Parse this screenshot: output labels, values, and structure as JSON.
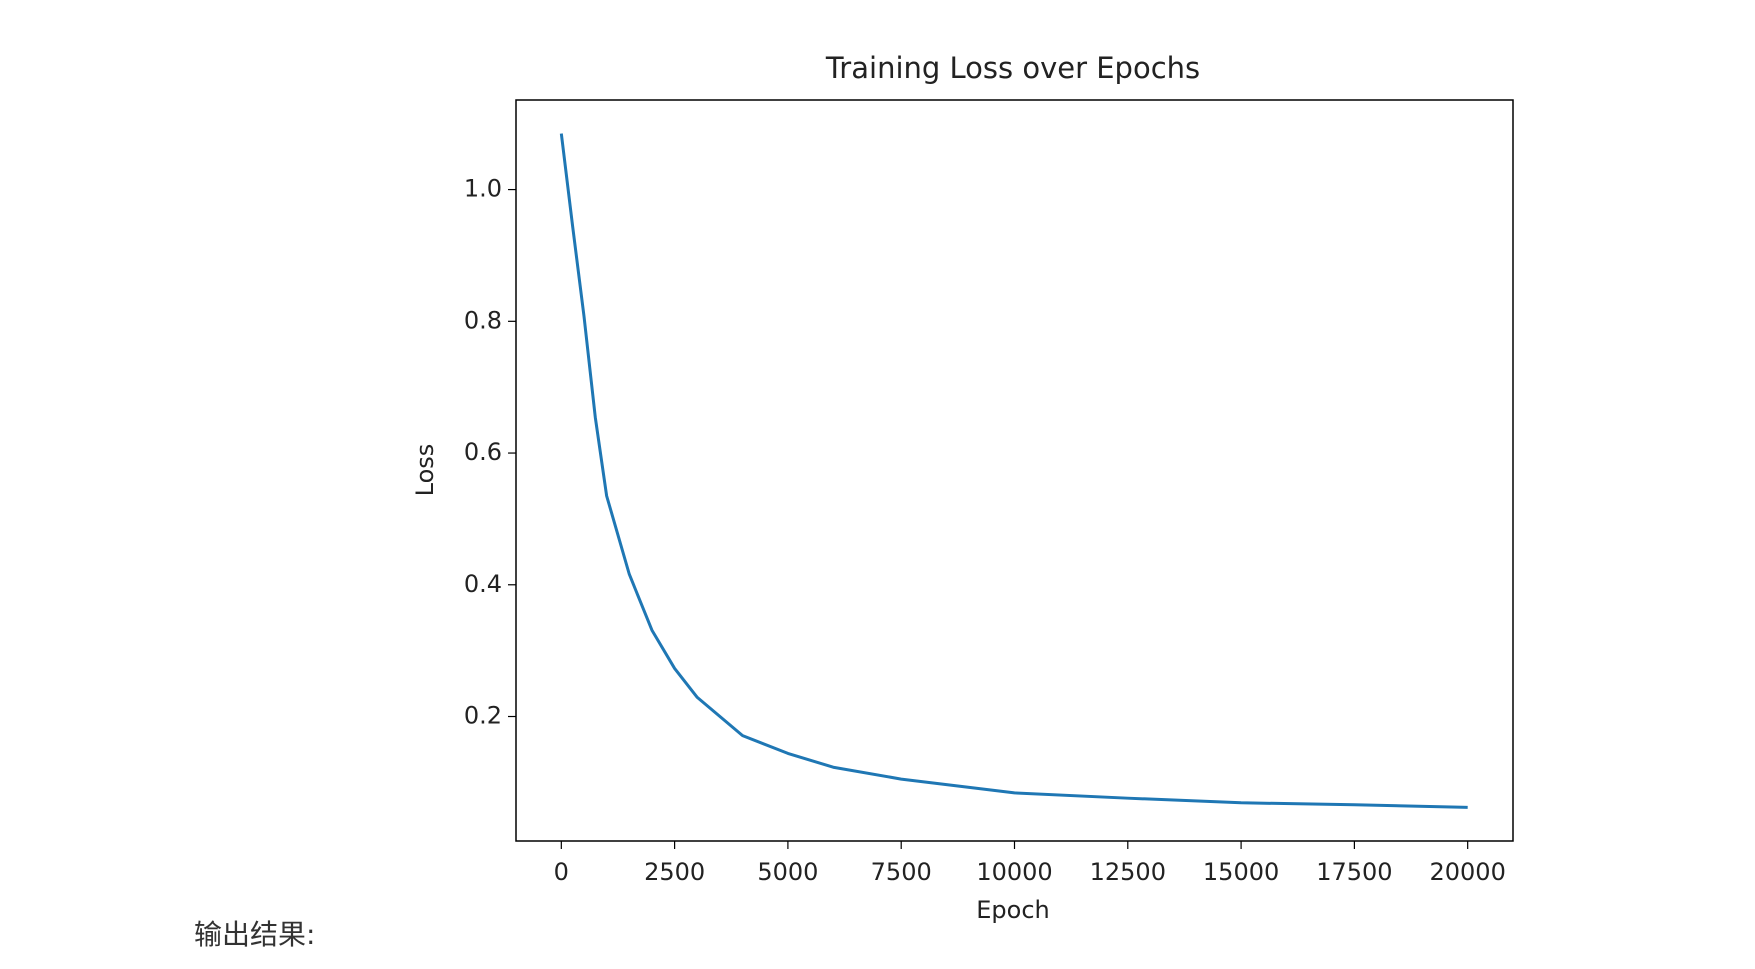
{
  "chart_data": {
    "type": "line",
    "title": "Training Loss over Epochs",
    "xlabel": "Epoch",
    "ylabel": "Loss",
    "x": [
      0,
      250,
      500,
      750,
      1000,
      1500,
      2000,
      2500,
      3000,
      4000,
      5000,
      6000,
      7500,
      10000,
      12500,
      15000,
      17500,
      20000
    ],
    "series": [
      {
        "name": "Loss",
        "color": "#1f77b4",
        "values": [
          1.085,
          0.944,
          0.808,
          0.654,
          0.535,
          0.416,
          0.331,
          0.273,
          0.229,
          0.171,
          0.144,
          0.123,
          0.105,
          0.084,
          0.076,
          0.069,
          0.066,
          0.062
        ]
      }
    ],
    "xlim": [
      -1000,
      21000
    ],
    "xticks": [
      0,
      2500,
      5000,
      7500,
      10000,
      12500,
      15000,
      17500,
      20000
    ],
    "ylim": [
      0.011,
      1.136
    ],
    "yticks": [
      0.2,
      0.4,
      0.6,
      0.8,
      {
        "value": 1.0,
        "label": "1.0"
      }
    ],
    "grid": false
  },
  "caption": "输出结果:"
}
